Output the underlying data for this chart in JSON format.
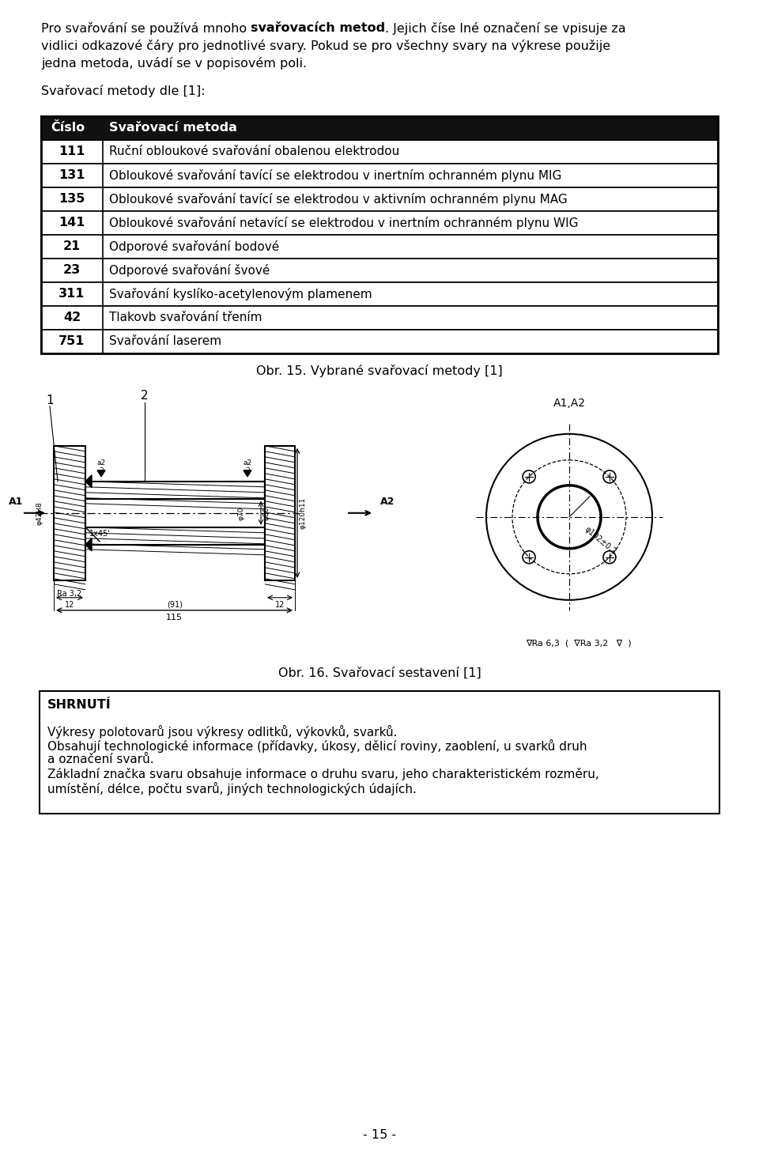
{
  "bg_color": "#ffffff",
  "page_width": 9.6,
  "page_height": 14.62,
  "intro_parts": [
    [
      [
        "Pro svařování se používá mnoho ",
        false
      ],
      [
        "svařovacích metod",
        true
      ],
      [
        ". Jejich číse lné označení se vpisuje za",
        false
      ]
    ],
    [
      [
        "vidlici odkazové čáry pro jednotlivé svary. Pokud se pro všechny svary na výkrese použije",
        false
      ]
    ],
    [
      [
        "jedna metoda, uvádí se v popisovém poli.",
        false
      ]
    ]
  ],
  "label_text": "Svařovací metody dle [1]:",
  "table_header": [
    "Číslo",
    "Svařovací metoda"
  ],
  "table_rows": [
    [
      "111",
      "Ruční obloukové svařování obalenou elektrodou"
    ],
    [
      "131",
      "Obloukové svařování tavící se elektrodou v inertním ochranném plynu MIG"
    ],
    [
      "135",
      "Obloukové svařování tavící se elektrodou v aktivním ochranném plynu MAG"
    ],
    [
      "141",
      "Obloukové svařování netavící se elektrodou v inertním ochranném plynu WIG"
    ],
    [
      "21",
      "Odporové svařování bodové"
    ],
    [
      "23",
      "Odporové svařování švové"
    ],
    [
      "311",
      "Svařování kyslíko-acetylenovým plamenem"
    ],
    [
      "42",
      "Tlakovb svařování třením"
    ],
    [
      "751",
      "Svařování laserem"
    ]
  ],
  "caption1": "Obr. 15. Vybrané svařovací metody [1]",
  "caption2": "Obr. 16. Svařovací sestavení [1]",
  "shrn_title": "SHRNUTÍ",
  "shrn_lines": [
    "Výkresy polotovarů jsou výkresy odlitků, výkovků, svarků.",
    "Obsahují technologické informace (přídavky, úkosy, dělicí roviny, zaoblení, u svarků druh",
    "a označení svarů.",
    "Základní značka svaru obsahuje informace o druhu svaru, jeho charakteristickém rozměru,",
    "umístění, délce, počtu svarů, jiných technologických údajích."
  ],
  "page_num": "- 15 -"
}
